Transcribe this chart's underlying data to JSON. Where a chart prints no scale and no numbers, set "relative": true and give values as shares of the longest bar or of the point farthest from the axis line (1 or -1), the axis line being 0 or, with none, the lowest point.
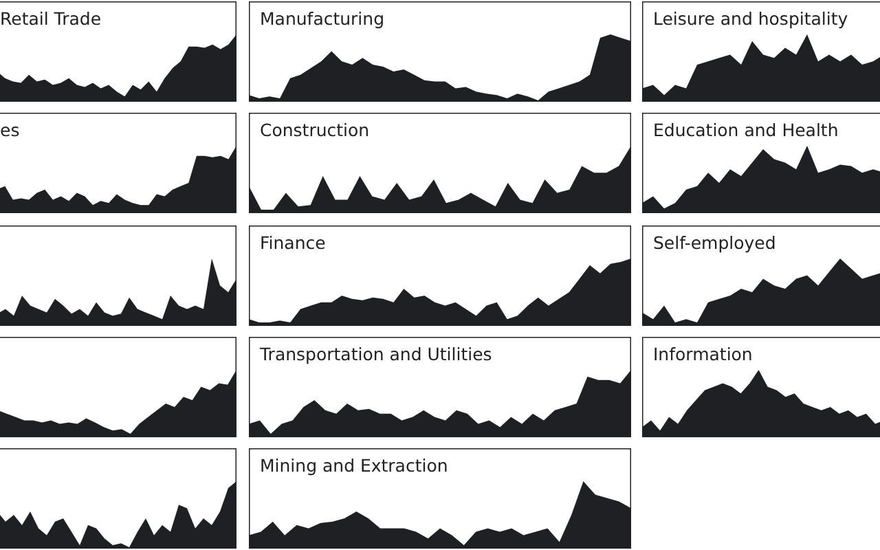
{
  "chart_data": [
    {
      "type": "area",
      "title": "Retail Trade",
      "relative": true,
      "color": "#1e2024",
      "categories": [
        null,
        null,
        null,
        null,
        null,
        null,
        null,
        null,
        null,
        null,
        null,
        null,
        null,
        null,
        null,
        null,
        null,
        null,
        null,
        null,
        null,
        null,
        null,
        null,
        null,
        null,
        null,
        null,
        null,
        null,
        null,
        null
      ],
      "values": [
        0.3,
        0.45,
        0.35,
        0.3,
        0.28,
        0.4,
        0.3,
        0.33,
        0.25,
        0.28,
        0.35,
        0.25,
        0.22,
        0.28,
        0.2,
        0.25,
        0.15,
        0.08,
        0.25,
        0.18,
        0.3,
        0.15,
        0.35,
        0.5,
        0.6,
        0.82,
        0.82,
        0.8,
        0.85,
        0.78,
        0.85,
        1.0
      ]
    },
    {
      "type": "area",
      "title": "Manufacturing",
      "relative": true,
      "color": "#1e2024",
      "categories": [
        null,
        null,
        null,
        null,
        null,
        null,
        null,
        null,
        null,
        null,
        null,
        null,
        null,
        null,
        null,
        null,
        null,
        null,
        null,
        null,
        null,
        null,
        null,
        null,
        null,
        null,
        null,
        null,
        null,
        null,
        null,
        null,
        null,
        null,
        null,
        null,
        null,
        null
      ],
      "values": [
        0.1,
        0.05,
        0.08,
        0.05,
        0.35,
        0.4,
        0.5,
        0.6,
        0.75,
        0.6,
        0.55,
        0.65,
        0.55,
        0.52,
        0.45,
        0.48,
        0.4,
        0.32,
        0.3,
        0.3,
        0.2,
        0.22,
        0.15,
        0.12,
        0.1,
        0.05,
        0.12,
        0.08,
        0.02,
        0.15,
        0.2,
        0.25,
        0.3,
        0.4,
        0.95,
        1.0,
        0.95,
        0.9
      ]
    },
    {
      "type": "area",
      "title": "Leisure and hospitality",
      "relative": true,
      "color": "#1e2024",
      "categories": [
        null,
        null,
        null,
        null,
        null,
        null,
        null,
        null,
        null,
        null,
        null,
        null,
        null,
        null,
        null,
        null,
        null,
        null,
        null,
        null,
        null,
        null,
        null
      ],
      "values": [
        0.2,
        0.25,
        0.1,
        0.25,
        0.2,
        0.55,
        0.6,
        0.65,
        0.7,
        0.55,
        0.9,
        0.7,
        0.65,
        0.8,
        0.7,
        1.0,
        0.6,
        0.7,
        0.6,
        0.7,
        0.55,
        0.6,
        0.7
      ]
    },
    {
      "type": "area",
      "title": "es",
      "relative": true,
      "color": "#1e2024",
      "categories": [
        null,
        null,
        null,
        null,
        null,
        null,
        null,
        null,
        null,
        null,
        null,
        null,
        null,
        null,
        null,
        null,
        null,
        null,
        null,
        null,
        null,
        null,
        null,
        null,
        null,
        null,
        null,
        null,
        null,
        null,
        null,
        null
      ],
      "values": [
        0.3,
        0.35,
        0.4,
        0.2,
        0.22,
        0.2,
        0.3,
        0.35,
        0.2,
        0.25,
        0.18,
        0.3,
        0.25,
        0.12,
        0.18,
        0.15,
        0.28,
        0.2,
        0.15,
        0.12,
        0.12,
        0.28,
        0.25,
        0.35,
        0.4,
        0.45,
        0.85,
        0.85,
        0.83,
        0.85,
        0.8,
        1.0
      ]
    },
    {
      "type": "area",
      "title": "Construction",
      "relative": true,
      "color": "#1e2024",
      "categories": [
        null,
        null,
        null,
        null,
        null,
        null,
        null,
        null,
        null,
        null,
        null,
        null,
        null,
        null,
        null,
        null,
        null,
        null,
        null,
        null,
        null,
        null,
        null,
        null,
        null,
        null,
        null,
        null,
        null,
        null,
        null,
        null
      ],
      "values": [
        0.4,
        0.05,
        0.05,
        0.3,
        0.1,
        0.12,
        0.55,
        0.2,
        0.2,
        0.55,
        0.25,
        0.2,
        0.45,
        0.2,
        0.25,
        0.5,
        0.15,
        0.2,
        0.3,
        0.2,
        0.1,
        0.45,
        0.2,
        0.15,
        0.5,
        0.3,
        0.35,
        0.7,
        0.6,
        0.6,
        0.7,
        1.0
      ]
    },
    {
      "type": "area",
      "title": "Education and Health",
      "relative": true,
      "color": "#1e2024",
      "categories": [
        null,
        null,
        null,
        null,
        null,
        null,
        null,
        null,
        null,
        null,
        null,
        null,
        null,
        null,
        null,
        null,
        null,
        null,
        null,
        null,
        null,
        null,
        null
      ],
      "values": [
        0.15,
        0.25,
        0.07,
        0.15,
        0.35,
        0.4,
        0.6,
        0.45,
        0.65,
        0.55,
        0.75,
        0.95,
        0.8,
        0.75,
        0.65,
        1.0,
        0.6,
        0.65,
        0.72,
        0.7,
        0.6,
        0.65,
        0.6
      ]
    },
    {
      "type": "area",
      "relative": true,
      "color": "#1e2024",
      "categories": [
        null,
        null,
        null,
        null,
        null,
        null,
        null,
        null,
        null,
        null,
        null,
        null,
        null,
        null,
        null,
        null,
        null,
        null,
        null,
        null,
        null,
        null,
        null,
        null,
        null,
        null,
        null,
        null,
        null,
        null,
        null
      ],
      "values": [
        0.2,
        0.18,
        0.25,
        0.15,
        0.45,
        0.3,
        0.25,
        0.2,
        0.4,
        0.3,
        0.18,
        0.25,
        0.15,
        0.35,
        0.2,
        0.15,
        0.18,
        0.42,
        0.25,
        0.2,
        0.15,
        0.1,
        0.45,
        0.3,
        0.25,
        0.3,
        0.25,
        1.0,
        0.6,
        0.5,
        0.7
      ]
    },
    {
      "type": "area",
      "title": "Finance",
      "relative": true,
      "color": "#1e2024",
      "categories": [
        null,
        null,
        null,
        null,
        null,
        null,
        null,
        null,
        null,
        null,
        null,
        null,
        null,
        null,
        null,
        null,
        null,
        null,
        null,
        null,
        null,
        null,
        null,
        null,
        null,
        null,
        null,
        null,
        null,
        null,
        null,
        null,
        null,
        null,
        null,
        null,
        null,
        null
      ],
      "values": [
        0.1,
        0.05,
        0.05,
        0.08,
        0.05,
        0.25,
        0.3,
        0.35,
        0.35,
        0.45,
        0.4,
        0.38,
        0.42,
        0.4,
        0.35,
        0.55,
        0.42,
        0.45,
        0.35,
        0.3,
        0.35,
        0.25,
        0.15,
        0.3,
        0.35,
        0.1,
        0.15,
        0.3,
        0.42,
        0.3,
        0.4,
        0.5,
        0.7,
        0.9,
        0.78,
        0.92,
        0.95,
        1.0
      ]
    },
    {
      "type": "area",
      "title": "Self-employed",
      "relative": true,
      "color": "#1e2024",
      "categories": [
        null,
        null,
        null,
        null,
        null,
        null,
        null,
        null,
        null,
        null,
        null,
        null,
        null,
        null,
        null,
        null,
        null,
        null,
        null,
        null,
        null,
        null,
        null
      ],
      "values": [
        0.2,
        0.1,
        0.3,
        0.05,
        0.1,
        0.05,
        0.35,
        0.4,
        0.45,
        0.55,
        0.5,
        0.7,
        0.6,
        0.55,
        0.7,
        0.75,
        0.6,
        0.8,
        1.0,
        0.85,
        0.7,
        0.75,
        0.8
      ]
    },
    {
      "type": "area",
      "relative": true,
      "color": "#1e2024",
      "categories": [
        null,
        null,
        null,
        null,
        null,
        null,
        null,
        null,
        null,
        null,
        null,
        null,
        null,
        null,
        null,
        null,
        null,
        null,
        null,
        null,
        null,
        null,
        null,
        null,
        null,
        null,
        null,
        null,
        null
      ],
      "values": [
        0.3,
        0.4,
        0.35,
        0.3,
        0.25,
        0.25,
        0.22,
        0.25,
        0.2,
        0.22,
        0.2,
        0.28,
        0.22,
        0.15,
        0.1,
        0.12,
        0.05,
        0.2,
        0.3,
        0.4,
        0.5,
        0.45,
        0.6,
        0.55,
        0.75,
        0.7,
        0.8,
        0.78,
        1.0
      ]
    },
    {
      "type": "area",
      "title": "Transportation and Utilities",
      "relative": true,
      "color": "#1e2024",
      "categories": [
        null,
        null,
        null,
        null,
        null,
        null,
        null,
        null,
        null,
        null,
        null,
        null,
        null,
        null,
        null,
        null,
        null,
        null,
        null,
        null,
        null,
        null,
        null,
        null,
        null,
        null,
        null,
        null,
        null,
        null,
        null,
        null,
        null,
        null,
        null,
        null
      ],
      "values": [
        0.2,
        0.25,
        0.05,
        0.2,
        0.25,
        0.45,
        0.55,
        0.4,
        0.35,
        0.5,
        0.4,
        0.42,
        0.35,
        0.35,
        0.25,
        0.3,
        0.4,
        0.3,
        0.25,
        0.4,
        0.35,
        0.2,
        0.25,
        0.15,
        0.3,
        0.2,
        0.35,
        0.25,
        0.4,
        0.45,
        0.5,
        0.9,
        0.85,
        0.85,
        0.8,
        1.0
      ]
    },
    {
      "type": "area",
      "title": "Information",
      "relative": true,
      "color": "#1e2024",
      "categories": [
        null,
        null,
        null,
        null,
        null,
        null,
        null,
        null,
        null,
        null,
        null,
        null,
        null,
        null,
        null,
        null,
        null,
        null,
        null,
        null,
        null,
        null,
        null,
        null,
        null,
        null,
        null,
        null
      ],
      "values": [
        0.15,
        0.25,
        0.1,
        0.3,
        0.2,
        0.4,
        0.55,
        0.7,
        0.75,
        0.8,
        0.75,
        0.65,
        0.8,
        1.0,
        0.75,
        0.7,
        0.6,
        0.65,
        0.5,
        0.45,
        0.4,
        0.45,
        0.35,
        0.4,
        0.3,
        0.35,
        0.2,
        0.25
      ]
    },
    {
      "type": "area",
      "relative": true,
      "color": "#1e2024",
      "categories": [
        null,
        null,
        null,
        null,
        null,
        null,
        null,
        null,
        null,
        null,
        null,
        null,
        null,
        null,
        null,
        null,
        null,
        null,
        null,
        null,
        null,
        null,
        null,
        null,
        null,
        null,
        null,
        null,
        null,
        null,
        null
      ],
      "values": [
        0.3,
        0.55,
        0.4,
        0.5,
        0.35,
        0.55,
        0.3,
        0.2,
        0.4,
        0.45,
        0.25,
        0.05,
        0.35,
        0.3,
        0.15,
        0.05,
        0.08,
        0.02,
        0.25,
        0.45,
        0.2,
        0.35,
        0.25,
        0.65,
        0.6,
        0.3,
        0.45,
        0.35,
        0.55,
        0.9,
        1.0
      ]
    },
    {
      "type": "area",
      "title": "Mining and Extraction",
      "relative": true,
      "color": "#1e2024",
      "categories": [
        null,
        null,
        null,
        null,
        null,
        null,
        null,
        null,
        null,
        null,
        null,
        null,
        null,
        null,
        null,
        null,
        null,
        null,
        null,
        null,
        null,
        null,
        null,
        null,
        null,
        null,
        null,
        null,
        null,
        null,
        null,
        null,
        null
      ],
      "values": [
        0.2,
        0.25,
        0.4,
        0.2,
        0.35,
        0.3,
        0.38,
        0.4,
        0.45,
        0.55,
        0.45,
        0.3,
        0.3,
        0.3,
        0.25,
        0.15,
        0.3,
        0.2,
        0.05,
        0.25,
        0.3,
        0.25,
        0.3,
        0.2,
        0.25,
        0.3,
        0.1,
        0.5,
        1.0,
        0.8,
        0.75,
        0.7,
        0.6
      ]
    }
  ]
}
